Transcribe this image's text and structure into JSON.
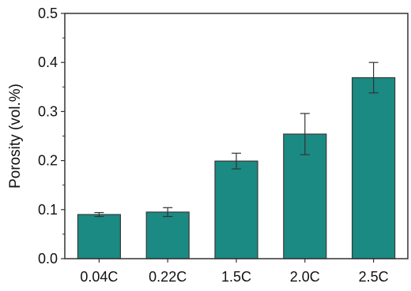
{
  "chart_data": {
    "type": "bar",
    "title": "",
    "xlabel": "",
    "ylabel": "Porosity (vol.%)",
    "categories": [
      "0.04C",
      "0.22C",
      "1.5C",
      "2.0C",
      "2.5C"
    ],
    "values": [
      0.09,
      0.095,
      0.199,
      0.254,
      0.369
    ],
    "error": [
      0.004,
      0.009,
      0.016,
      0.042,
      0.031
    ],
    "ylim": [
      0,
      0.5
    ],
    "yticks": [
      0.0,
      0.1,
      0.2,
      0.3,
      0.4,
      0.5
    ],
    "ytick_labels": [
      "0.0",
      "0.1",
      "0.2",
      "0.3",
      "0.4",
      "0.5"
    ],
    "grid": false,
    "legend": "none"
  },
  "colors": {
    "bar_fill": "#1a8a83",
    "bar_stroke": "#3a3a3a",
    "axis": "#333333",
    "text": "#111111"
  }
}
